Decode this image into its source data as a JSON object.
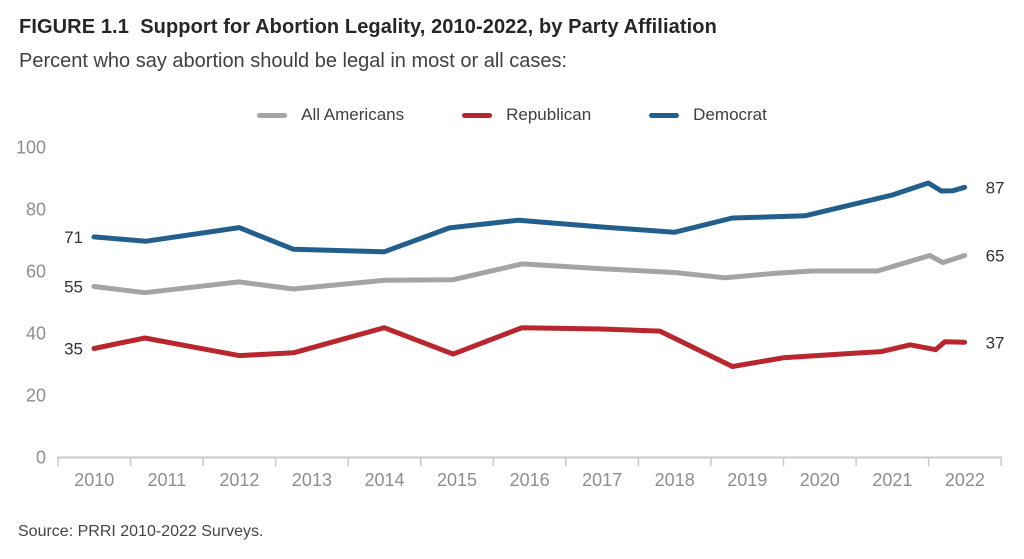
{
  "figure": {
    "title": "FIGURE 1.1  Support for Abortion Legality, 2010-2022, by Party Affiliation",
    "subtitle": "Percent who say abortion should be legal in most or all cases:",
    "source": "Source: PRRI 2010-2022 Surveys."
  },
  "colors": {
    "axis_line": "#c9c9c9",
    "axis_text": "#8e8e8e",
    "value_text": "#333333"
  },
  "chart_data": {
    "type": "line",
    "title": "FIGURE 1.1  Support for Abortion Legality, 2010-2022, by Party Affiliation",
    "subtitle": "Percent who say abortion should be legal in most or all cases:",
    "xlabel": "",
    "ylabel": "",
    "ylim": [
      0,
      100
    ],
    "y_ticks": [
      0,
      20,
      40,
      60,
      80,
      100
    ],
    "x_tick_labels": [
      "2010",
      "2011",
      "2012",
      "2013",
      "2014",
      "2015",
      "2016",
      "2017",
      "2018",
      "2019",
      "2020",
      "2021",
      "2022"
    ],
    "grid": false,
    "legend_position": "top",
    "series": [
      {
        "name": "All Americans",
        "color": "#a4a4a4",
        "start_label": "55",
        "end_label": "65",
        "points": [
          [
            2010.0,
            55
          ],
          [
            2010.7,
            53
          ],
          [
            2012.0,
            56.5
          ],
          [
            2012.75,
            54.2
          ],
          [
            2014.0,
            57
          ],
          [
            2014.95,
            57.2
          ],
          [
            2015.9,
            62.3
          ],
          [
            2017.0,
            60.7
          ],
          [
            2018.0,
            59.5
          ],
          [
            2018.7,
            57.8
          ],
          [
            2019.4,
            59.3
          ],
          [
            2019.9,
            60
          ],
          [
            2020.8,
            60
          ],
          [
            2021.52,
            65
          ],
          [
            2021.7,
            62.7
          ],
          [
            2022.0,
            65
          ]
        ]
      },
      {
        "name": "Republican",
        "color": "#b8262e",
        "start_label": "35",
        "end_label": "37",
        "points": [
          [
            2010.0,
            35
          ],
          [
            2010.7,
            38.4
          ],
          [
            2012.0,
            32.7
          ],
          [
            2012.75,
            33.6
          ],
          [
            2014.0,
            41.7
          ],
          [
            2014.95,
            33.2
          ],
          [
            2015.9,
            41.7
          ],
          [
            2017.0,
            41.3
          ],
          [
            2017.8,
            40.6
          ],
          [
            2018.8,
            29.2
          ],
          [
            2019.5,
            32
          ],
          [
            2020.5,
            33.5
          ],
          [
            2020.85,
            34
          ],
          [
            2021.25,
            36.2
          ],
          [
            2021.6,
            34.6
          ],
          [
            2021.73,
            37.2
          ],
          [
            2022.0,
            37
          ]
        ]
      },
      {
        "name": "Democrat",
        "color": "#235f8c",
        "start_label": "71",
        "end_label": "87",
        "points": [
          [
            2010.0,
            71
          ],
          [
            2010.72,
            69.6
          ],
          [
            2012.0,
            74
          ],
          [
            2012.75,
            67
          ],
          [
            2014.0,
            66.2
          ],
          [
            2014.9,
            73.9
          ],
          [
            2015.85,
            76.4
          ],
          [
            2017.0,
            74.2
          ],
          [
            2018.0,
            72.5
          ],
          [
            2018.8,
            77.1
          ],
          [
            2019.8,
            77.8
          ],
          [
            2021.0,
            84.5
          ],
          [
            2021.5,
            88.4
          ],
          [
            2021.68,
            85.8
          ],
          [
            2021.84,
            85.9
          ],
          [
            2022.0,
            87
          ]
        ]
      }
    ]
  }
}
